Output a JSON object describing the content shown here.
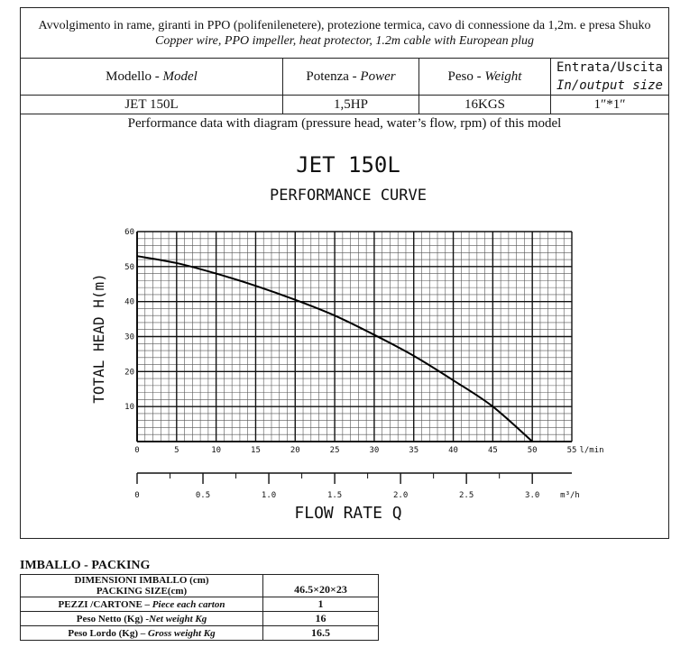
{
  "description": {
    "italian": "Avvolgimento in rame, giranti in PPO (polifenilenetere), protezione termica, cavo di connessione da 1,2m. e presa Shuko",
    "english": "Copper wire, PPO impeller, heat protector, 1.2m cable with European plug"
  },
  "spec_table": {
    "headers": [
      {
        "it": "Modello - ",
        "en": "Model"
      },
      {
        "it": "Potenza - ",
        "en": "Power"
      },
      {
        "it": "Peso - ",
        "en": "Weight"
      },
      {
        "it": "Entrata/Uscita",
        "en": "In/output size"
      }
    ],
    "row": [
      "JET 150L",
      "1,5HP",
      "16KGS",
      "1″*1″"
    ]
  },
  "performance_caption": "Performance  data with diagram (pressure head, water’s flow, rpm) of this model",
  "chart_data": {
    "type": "line",
    "title": "JET 150L",
    "subtitle": "PERFORMANCE CURVE",
    "ylabel": "TOTAL HEAD  H(m)",
    "xlabel": "FLOW RATE Q",
    "x_unit": "l/min",
    "x2_unit": "m³/h",
    "xlim": [
      0,
      55
    ],
    "ylim": [
      0,
      60
    ],
    "x_ticks": [
      0,
      5,
      10,
      15,
      20,
      25,
      30,
      35,
      40,
      45,
      50,
      55
    ],
    "y_ticks": [
      10,
      20,
      30,
      40,
      50,
      60
    ],
    "x2_ticks": [
      "0",
      "0.5",
      "1.0",
      "1.5",
      "2.0",
      "2.5",
      "3.0"
    ],
    "x2_values": [
      0,
      0.5,
      1.0,
      1.5,
      2.0,
      2.5,
      3.0
    ],
    "grid": true,
    "series": [
      {
        "x": [
          0,
          5,
          10,
          15,
          20,
          25,
          30,
          35,
          40,
          45,
          50
        ],
        "y": [
          53,
          51,
          48,
          44.5,
          40.5,
          36,
          30.5,
          24.5,
          17.5,
          10,
          0
        ]
      }
    ]
  },
  "packing": {
    "title": "IMBALLO - PACKING",
    "rows": [
      {
        "label_it": "DIMENSIONI IMBALLO (cm)",
        "label_en": "PACKING SIZE(cm)",
        "value": "46.5×20×23"
      },
      {
        "label_it": "PEZZI /CARTONE – ",
        "label_en": "Piece each carton",
        "value": "1"
      },
      {
        "label_it": "Peso Netto (Kg) -",
        "label_en": "Net  weight Kg",
        "value": "16"
      },
      {
        "label_it": "Peso Lordo (Kg) – ",
        "label_en": "Gross weight Kg",
        "value": "16.5"
      }
    ]
  }
}
